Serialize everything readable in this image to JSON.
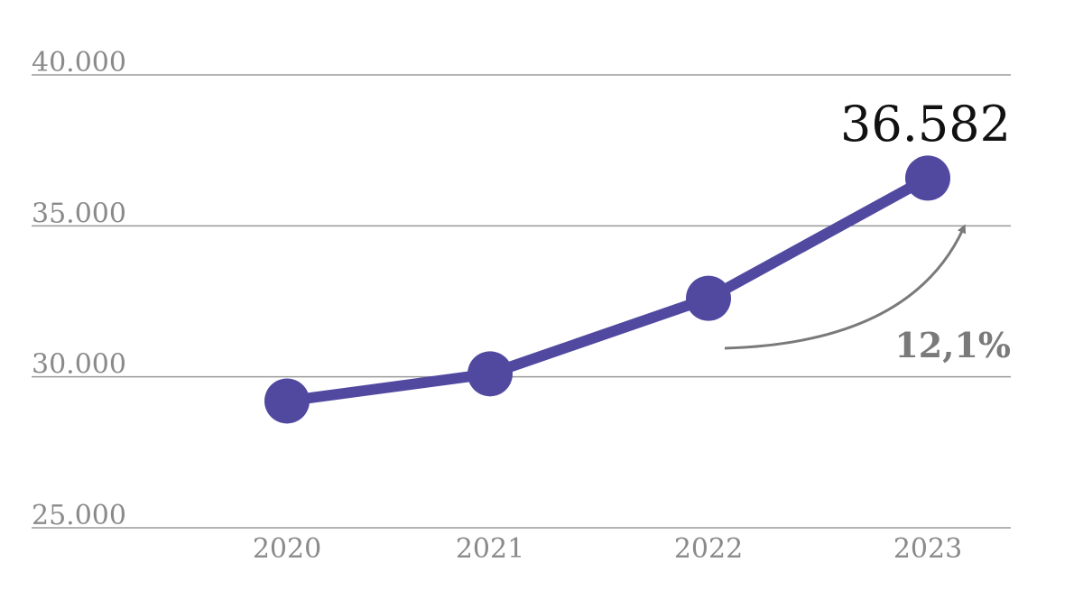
{
  "chart_data": {
    "type": "line",
    "categories": [
      "2020",
      "2021",
      "2022",
      "2023"
    ],
    "values": [
      29200,
      30100,
      32600,
      36582
    ],
    "y_ticks": [
      "40.000",
      "35.000",
      "30.000",
      "25.000"
    ],
    "y_tick_values": [
      40000,
      35000,
      30000,
      25000
    ],
    "ylim": [
      25000,
      40000
    ],
    "grid": true,
    "highlight_label": "36.582",
    "growth_label": "12,1%",
    "colors": {
      "line": "#5149a0",
      "grid": "#9a9a9a",
      "arrow": "#7a7a7a",
      "tick_text": "#8a8a8a",
      "value_text": "#111111"
    }
  }
}
